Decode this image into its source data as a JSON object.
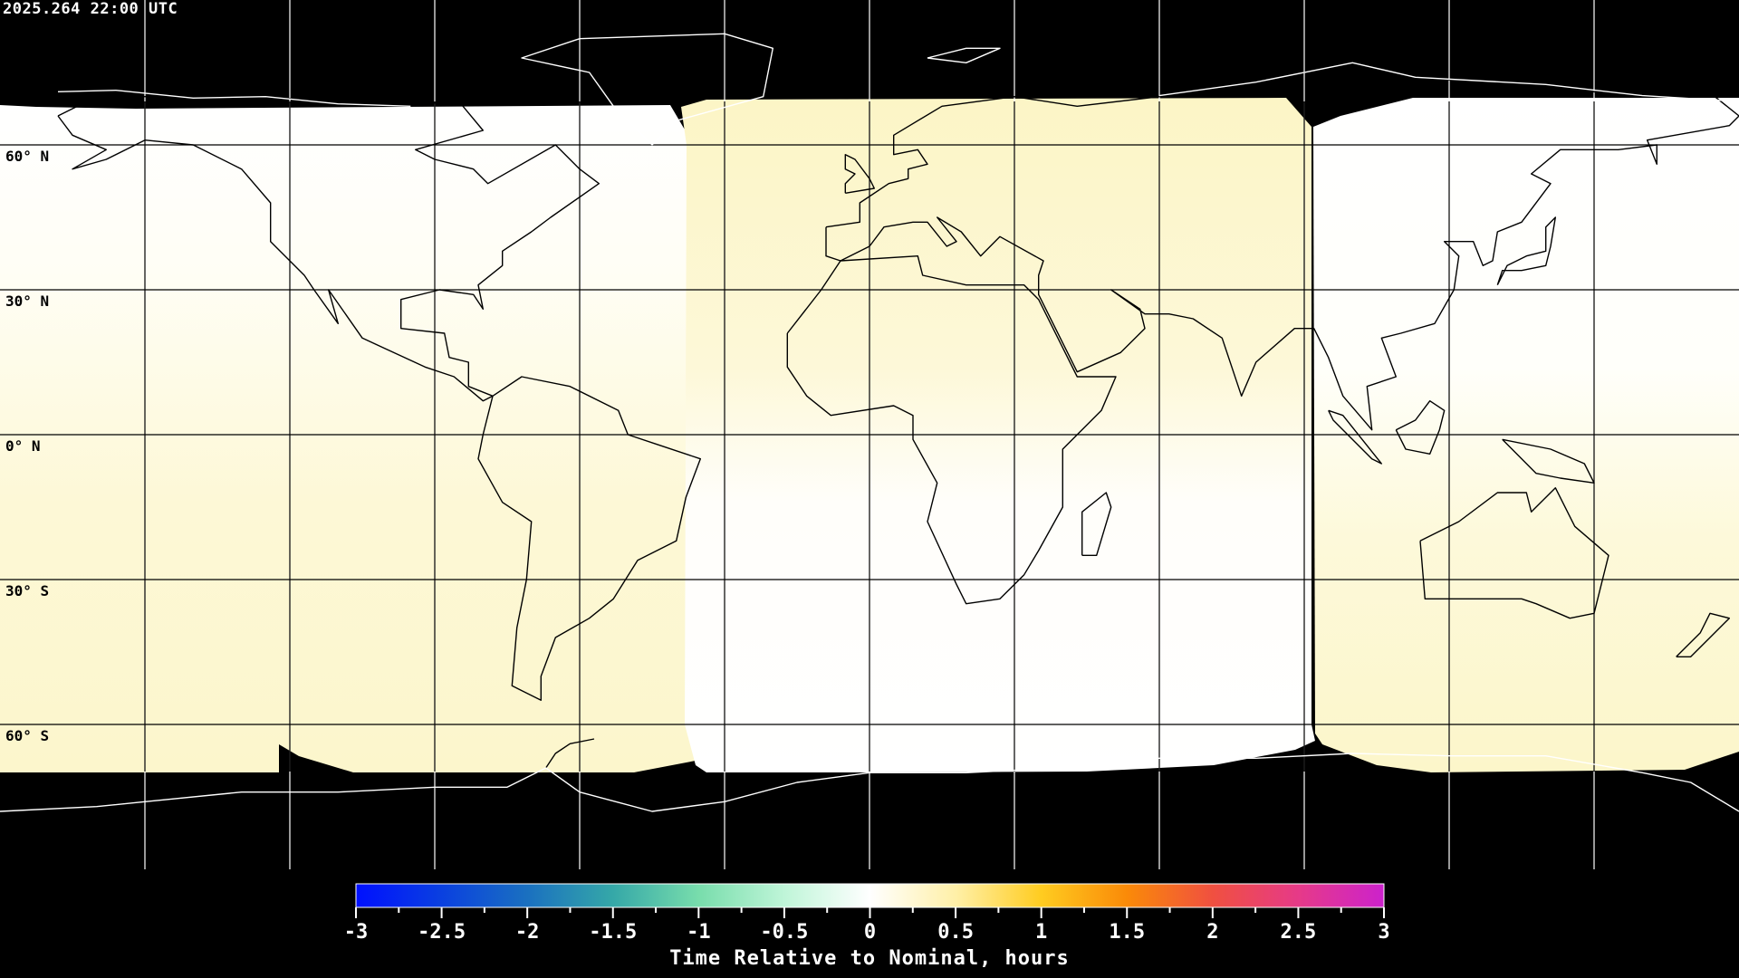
{
  "header": {
    "timestamp": "2025.264 22:00 UTC"
  },
  "map": {
    "projection": "equirectangular",
    "grid_spacing_deg": 30,
    "lat_labels": [
      "60° N",
      "30° N",
      "0° N",
      "30° S",
      "60° S"
    ],
    "colors": {
      "no_data": "#000000",
      "coast_in_data": "#000000",
      "coast_no_data": "#ffffff",
      "grid_in_data": "#000000",
      "grid_no_data": "#ffffff",
      "pale_yellow": "#fdf7cc",
      "white": "#ffffff"
    }
  },
  "colorbar": {
    "title": "Time Relative to Nominal, hours",
    "min": -3,
    "max": 3,
    "tick_labels": [
      "-3",
      "-2.5",
      "-2",
      "-1.5",
      "-1",
      "-0.5",
      "0",
      "0.5",
      "1",
      "1.5",
      "2",
      "2.5",
      "3"
    ],
    "stops": [
      {
        "value": -3,
        "color": "#0010ff"
      },
      {
        "value": -2.5,
        "color": "#0a40e0"
      },
      {
        "value": -2,
        "color": "#1a70c0"
      },
      {
        "value": -1.5,
        "color": "#35a8a8"
      },
      {
        "value": -1,
        "color": "#78ddac"
      },
      {
        "value": -0.5,
        "color": "#bff5d8"
      },
      {
        "value": 0,
        "color": "#ffffff"
      },
      {
        "value": 0.5,
        "color": "#fff0a8"
      },
      {
        "value": 1,
        "color": "#ffcc20"
      },
      {
        "value": 1.5,
        "color": "#fa8a08"
      },
      {
        "value": 2,
        "color": "#f05040"
      },
      {
        "value": 2.5,
        "color": "#e63a88"
      },
      {
        "value": 3,
        "color": "#cc22cc"
      }
    ]
  }
}
